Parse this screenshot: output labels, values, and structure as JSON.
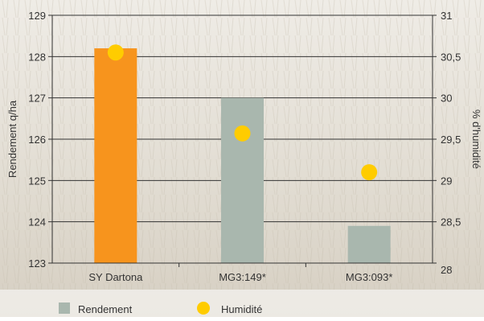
{
  "chart_data": {
    "type": "bar",
    "categories": [
      "SY Dartona",
      "MG3:149*",
      "MG3:093*"
    ],
    "series": [
      {
        "name": "Rendement",
        "axis": "left",
        "type": "bar",
        "values": [
          128.2,
          127.0,
          123.9
        ]
      },
      {
        "name": "Humidité",
        "axis": "right",
        "type": "scatter",
        "values": [
          30.55,
          29.57,
          29.1
        ]
      }
    ],
    "ylabel": "Rendement q/ha",
    "ylim": [
      123,
      129
    ],
    "yticks": [
      123,
      124,
      125,
      126,
      127,
      128,
      129
    ],
    "ylabel2": "% d'humidité",
    "ylim2": [
      28,
      31
    ],
    "yticks2": [
      "28",
      "28,5",
      "29",
      "29,5",
      "30",
      "30,5",
      "31"
    ],
    "grid": true,
    "legend_position": "bottom",
    "colors": {
      "highlight_bar": "#F7941D",
      "bar": "#A9B7AE",
      "marker": "#FFCC00",
      "axis": "#333333",
      "background_light": "#EEEBE4",
      "background_dark": "#CFC8BB"
    }
  },
  "legend": {
    "items": [
      {
        "label": "Rendement",
        "icon": "gray-square-icon"
      },
      {
        "label": "Humidité",
        "icon": "yellow-circle-icon"
      }
    ]
  }
}
